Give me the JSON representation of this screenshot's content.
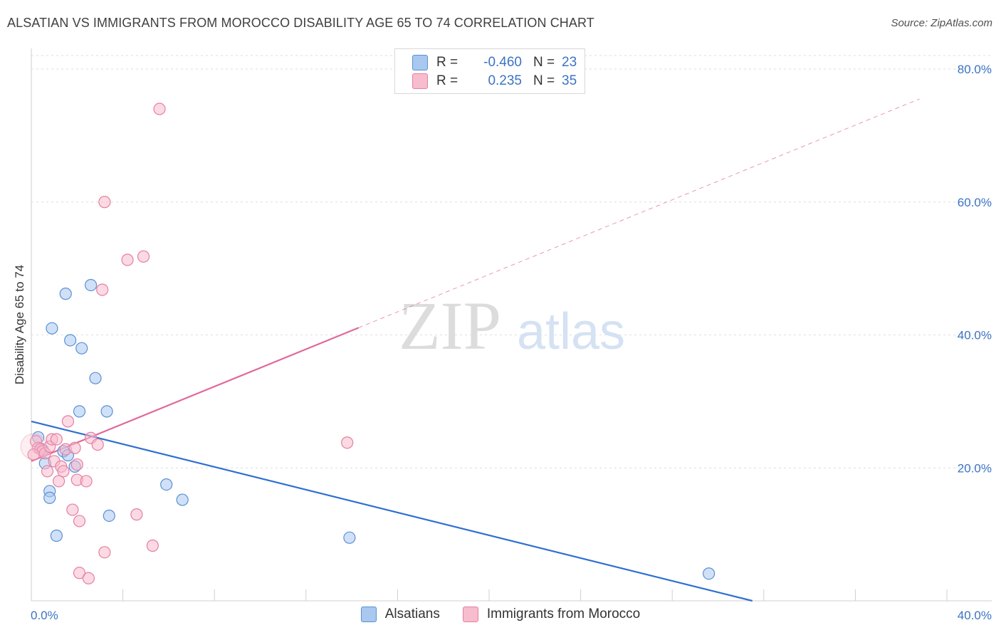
{
  "header": {
    "title": "ALSATIAN VS IMMIGRANTS FROM MOROCCO DISABILITY AGE 65 TO 74 CORRELATION CHART",
    "source": "Source: ZipAtlas.com"
  },
  "watermark": {
    "zip": "ZIP",
    "atlas": "atlas"
  },
  "legend": {
    "rows": [
      {
        "r_label": "R =",
        "r_value": "-0.460",
        "n_label": "N =",
        "n_value": "23",
        "fill": "#a9c8f0",
        "stroke": "#5b8fd6"
      },
      {
        "r_label": "R =",
        "r_value": "0.235",
        "n_label": "N =",
        "n_value": "35",
        "fill": "#f7bccd",
        "stroke": "#e57fa0"
      }
    ]
  },
  "bottom_legend": {
    "items": [
      {
        "label": "Alsatians",
        "fill": "#a9c8f0",
        "stroke": "#5b8fd6"
      },
      {
        "label": "Immigrants from Morocco",
        "fill": "#f7bccd",
        "stroke": "#e57fa0"
      }
    ]
  },
  "chart_data": {
    "type": "scatter",
    "title": "ALSATIAN VS IMMIGRANTS FROM MOROCCO DISABILITY AGE 65 TO 74 CORRELATION CHART",
    "xlabel": "",
    "ylabel": "Disability Age 65 to 74",
    "xlim": [
      0,
      40
    ],
    "ylim": [
      0,
      80
    ],
    "x_tick_labels": {
      "left": "0.0%",
      "right": "40.0%"
    },
    "y_ticks": [
      {
        "value": 20,
        "label": "20.0%"
      },
      {
        "value": 40,
        "label": "40.0%"
      },
      {
        "value": 60,
        "label": "60.0%"
      },
      {
        "value": 80,
        "label": "80.0%"
      }
    ],
    "grid": true,
    "colors": {
      "blue": "#3b73c4",
      "blue_line": "#2f6fd0",
      "pink_line": "#e0699a"
    },
    "series": [
      {
        "name": "Alsatians",
        "color": "#5b8fd6",
        "fill": "#a9c8f0",
        "points": [
          [
            0.3,
            24.6
          ],
          [
            0.4,
            22.9
          ],
          [
            0.5,
            22.7
          ],
          [
            0.6,
            20.7
          ],
          [
            0.8,
            16.5
          ],
          [
            0.8,
            15.5
          ],
          [
            0.9,
            41.0
          ],
          [
            1.1,
            9.8
          ],
          [
            1.4,
            22.5
          ],
          [
            1.5,
            46.2
          ],
          [
            1.6,
            21.9
          ],
          [
            1.7,
            39.2
          ],
          [
            1.9,
            20.2
          ],
          [
            2.1,
            28.5
          ],
          [
            2.2,
            38.0
          ],
          [
            2.6,
            47.5
          ],
          [
            2.8,
            33.5
          ],
          [
            3.3,
            28.5
          ],
          [
            3.4,
            12.8
          ],
          [
            5.9,
            17.5
          ],
          [
            6.6,
            15.2
          ],
          [
            13.9,
            9.5
          ],
          [
            29.6,
            4.1
          ]
        ],
        "trend": {
          "x0": 0,
          "y0": 27.0,
          "x1": 31.5,
          "y1": 0,
          "solid_until": 31.5
        }
      },
      {
        "name": "Immigrants from Morocco",
        "color": "#e57fa0",
        "fill": "#f7bccd",
        "points": [
          [
            0.2,
            24.0
          ],
          [
            0.3,
            23.0
          ],
          [
            0.4,
            22.8
          ],
          [
            0.5,
            22.5
          ],
          [
            0.6,
            22.2
          ],
          [
            0.7,
            19.5
          ],
          [
            0.8,
            23.2
          ],
          [
            0.9,
            24.3
          ],
          [
            1.0,
            21.0
          ],
          [
            1.1,
            24.3
          ],
          [
            1.2,
            18.0
          ],
          [
            1.3,
            20.2
          ],
          [
            1.4,
            19.5
          ],
          [
            1.5,
            22.8
          ],
          [
            1.6,
            27.0
          ],
          [
            1.8,
            13.7
          ],
          [
            1.9,
            23.0
          ],
          [
            2.0,
            20.5
          ],
          [
            2.0,
            18.2
          ],
          [
            2.1,
            12.0
          ],
          [
            2.1,
            4.2
          ],
          [
            2.4,
            18.0
          ],
          [
            2.5,
            3.4
          ],
          [
            2.6,
            24.5
          ],
          [
            2.9,
            23.5
          ],
          [
            3.1,
            46.8
          ],
          [
            3.2,
            7.3
          ],
          [
            3.2,
            60.0
          ],
          [
            4.2,
            51.3
          ],
          [
            4.6,
            13.0
          ],
          [
            4.9,
            51.8
          ],
          [
            5.3,
            8.3
          ],
          [
            5.6,
            74.0
          ],
          [
            13.8,
            23.8
          ],
          [
            0.1,
            22.0
          ]
        ],
        "trend": {
          "x0": 0,
          "y0": 21.0,
          "x1": 38.8,
          "y1": 75.5,
          "solid_until": 14.3
        }
      }
    ]
  }
}
